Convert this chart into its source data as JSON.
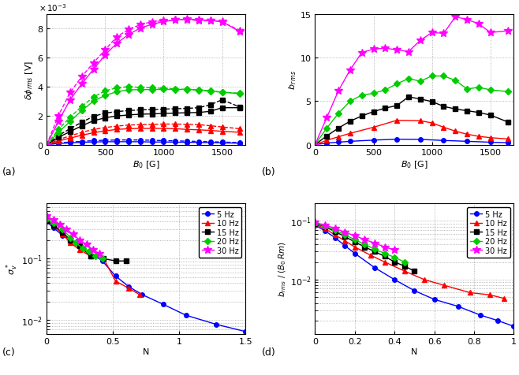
{
  "panel_a": {
    "xlabel": "B_0 [G]",
    "ylabel": "delta_phi_rms [V]",
    "ylim": [
      0,
      9
    ],
    "yticks": [
      0,
      2,
      4,
      6,
      8
    ],
    "xlim": [
      0,
      1700
    ],
    "xticks": [
      0,
      500,
      1000,
      1500
    ],
    "series": [
      {
        "label": "5 Hz",
        "color": "#0000FF",
        "marker": "o",
        "solid_x": [
          0,
          100,
          200,
          300,
          400,
          500,
          600,
          700,
          800,
          900,
          1000,
          1100,
          1200,
          1300,
          1400,
          1500,
          1650
        ],
        "solid_y": [
          0,
          0.08,
          0.12,
          0.16,
          0.18,
          0.2,
          0.2,
          0.2,
          0.2,
          0.18,
          0.18,
          0.17,
          0.16,
          0.15,
          0.14,
          0.12,
          0.1
        ],
        "dashed_x": [
          0,
          100,
          200,
          300,
          400,
          500,
          600,
          700,
          800,
          900,
          1000,
          1100,
          1200,
          1300,
          1400,
          1500,
          1650
        ],
        "dashed_y": [
          0,
          0.12,
          0.18,
          0.22,
          0.28,
          0.3,
          0.32,
          0.32,
          0.32,
          0.3,
          0.28,
          0.26,
          0.24,
          0.22,
          0.2,
          0.18,
          0.14
        ]
      },
      {
        "label": "10 Hz",
        "color": "#FF0000",
        "marker": "^",
        "solid_x": [
          0,
          100,
          200,
          300,
          400,
          500,
          600,
          700,
          800,
          900,
          1000,
          1100,
          1200,
          1300,
          1400,
          1500,
          1650
        ],
        "solid_y": [
          0,
          0.25,
          0.45,
          0.65,
          0.82,
          0.95,
          1.05,
          1.1,
          1.12,
          1.12,
          1.12,
          1.1,
          1.05,
          1.02,
          0.98,
          0.92,
          0.85
        ],
        "dashed_x": [
          0,
          100,
          200,
          300,
          400,
          500,
          600,
          700,
          800,
          900,
          1000,
          1100,
          1200,
          1300,
          1400,
          1500,
          1650
        ],
        "dashed_y": [
          0,
          0.35,
          0.6,
          0.85,
          1.05,
          1.18,
          1.28,
          1.35,
          1.38,
          1.4,
          1.42,
          1.42,
          1.4,
          1.38,
          1.3,
          1.22,
          1.1
        ]
      },
      {
        "label": "15 Hz",
        "color": "#000000",
        "marker": "s",
        "solid_x": [
          0,
          100,
          200,
          300,
          400,
          500,
          600,
          700,
          800,
          900,
          1000,
          1100,
          1200,
          1300,
          1400,
          1500,
          1650
        ],
        "solid_y": [
          0,
          0.5,
          0.9,
          1.3,
          1.65,
          1.85,
          1.98,
          2.05,
          2.1,
          2.12,
          2.15,
          2.18,
          2.2,
          2.22,
          2.3,
          2.55,
          2.55
        ],
        "dashed_x": [
          0,
          100,
          200,
          300,
          400,
          500,
          600,
          700,
          800,
          900,
          1000,
          1100,
          1200,
          1300,
          1400,
          1500,
          1650
        ],
        "dashed_y": [
          0,
          0.62,
          1.1,
          1.55,
          1.95,
          2.18,
          2.28,
          2.35,
          2.4,
          2.42,
          2.45,
          2.48,
          2.5,
          2.55,
          2.75,
          3.1,
          2.6
        ]
      },
      {
        "label": "20 Hz",
        "color": "#00CC00",
        "marker": "D",
        "solid_x": [
          0,
          100,
          200,
          300,
          400,
          500,
          600,
          700,
          800,
          900,
          1000,
          1100,
          1200,
          1300,
          1400,
          1500,
          1650
        ],
        "solid_y": [
          0,
          0.85,
          1.6,
          2.35,
          3.0,
          3.4,
          3.65,
          3.78,
          3.8,
          3.8,
          3.82,
          3.8,
          3.82,
          3.78,
          3.72,
          3.62,
          3.52
        ],
        "dashed_x": [
          0,
          100,
          200,
          300,
          400,
          500,
          600,
          700,
          800,
          900,
          1000,
          1100,
          1200,
          1300,
          1400,
          1500,
          1650
        ],
        "dashed_y": [
          0,
          1.05,
          1.88,
          2.65,
          3.28,
          3.72,
          3.92,
          4.0,
          3.95,
          3.92,
          3.88,
          3.85,
          3.8,
          3.75,
          3.68,
          3.62,
          3.55
        ]
      },
      {
        "label": "30 Hz",
        "color": "#FF00FF",
        "marker": "*",
        "solid_x": [
          0,
          100,
          200,
          300,
          400,
          500,
          600,
          700,
          800,
          900,
          1000,
          1100,
          1200,
          1300,
          1400,
          1500,
          1650
        ],
        "solid_y": [
          0,
          1.6,
          3.1,
          4.2,
          5.2,
          6.2,
          7.0,
          7.6,
          8.05,
          8.3,
          8.5,
          8.6,
          8.68,
          8.62,
          8.58,
          8.5,
          7.8
        ],
        "dashed_x": [
          0,
          100,
          200,
          300,
          400,
          500,
          600,
          700,
          800,
          900,
          1000,
          1100,
          1200,
          1300,
          1400,
          1500,
          1650
        ],
        "dashed_y": [
          0,
          2.0,
          3.6,
          4.7,
          5.65,
          6.55,
          7.45,
          7.95,
          8.28,
          8.48,
          8.55,
          8.6,
          8.65,
          8.55,
          8.55,
          8.48,
          7.88
        ]
      }
    ]
  },
  "panel_b": {
    "xlabel": "B_0 [G]",
    "ylabel": "b_rms",
    "ylim": [
      0,
      15
    ],
    "yticks": [
      0,
      5,
      10,
      15
    ],
    "xlim": [
      0,
      1700
    ],
    "xticks": [
      0,
      500,
      1000,
      1500
    ],
    "series": [
      {
        "label": "5 Hz",
        "color": "#0000FF",
        "marker": "o",
        "x": [
          0,
          100,
          200,
          300,
          500,
          700,
          900,
          1100,
          1300,
          1500,
          1650
        ],
        "y": [
          0,
          0.18,
          0.28,
          0.38,
          0.52,
          0.62,
          0.6,
          0.48,
          0.38,
          0.28,
          0.22
        ]
      },
      {
        "label": "10 Hz",
        "color": "#FF0000",
        "marker": "^",
        "x": [
          0,
          100,
          200,
          300,
          500,
          700,
          900,
          1000,
          1100,
          1200,
          1300,
          1400,
          1500,
          1650
        ],
        "y": [
          0,
          0.5,
          0.9,
          1.3,
          2.0,
          2.8,
          2.75,
          2.5,
          2.0,
          1.55,
          1.2,
          0.95,
          0.8,
          0.65
        ]
      },
      {
        "label": "15 Hz",
        "color": "#000000",
        "marker": "s",
        "x": [
          0,
          100,
          200,
          300,
          400,
          500,
          600,
          700,
          800,
          900,
          1000,
          1100,
          1200,
          1300,
          1400,
          1500,
          1650
        ],
        "y": [
          0,
          1.0,
          1.9,
          2.7,
          3.3,
          3.8,
          4.2,
          4.5,
          5.5,
          5.25,
          4.95,
          4.4,
          4.1,
          3.9,
          3.7,
          3.4,
          2.6
        ]
      },
      {
        "label": "20 Hz",
        "color": "#00CC00",
        "marker": "D",
        "x": [
          0,
          100,
          200,
          300,
          400,
          500,
          600,
          700,
          800,
          900,
          1000,
          1100,
          1200,
          1300,
          1400,
          1500,
          1650
        ],
        "y": [
          0,
          1.9,
          3.6,
          5.0,
          5.7,
          5.9,
          6.3,
          7.0,
          7.6,
          7.3,
          7.9,
          7.9,
          7.4,
          6.4,
          6.6,
          6.3,
          6.1
        ]
      },
      {
        "label": "30 Hz",
        "color": "#FF00FF",
        "marker": "*",
        "x": [
          0,
          100,
          200,
          300,
          400,
          500,
          600,
          700,
          800,
          900,
          1000,
          1100,
          1200,
          1300,
          1400,
          1500,
          1650
        ],
        "y": [
          0,
          3.1,
          6.2,
          8.6,
          10.6,
          11.0,
          11.1,
          10.9,
          10.7,
          12.0,
          12.9,
          12.8,
          14.7,
          14.4,
          13.9,
          12.9,
          13.1
        ]
      }
    ]
  },
  "panel_c": {
    "xlabel": "N",
    "ylabel": "sigma_v*",
    "xlim": [
      0,
      1.5
    ],
    "xticks": [
      0,
      0.5,
      1.0,
      1.5
    ],
    "series": [
      {
        "label": "5 Hz",
        "color": "#0000FF",
        "marker": "o",
        "x": [
          0,
          0.05,
          0.12,
          0.22,
          0.32,
          0.42,
          0.52,
          0.62,
          0.72,
          0.88,
          1.05,
          1.28,
          1.5
        ],
        "y": [
          0.4,
          0.32,
          0.24,
          0.18,
          0.13,
          0.092,
          0.052,
          0.035,
          0.026,
          0.018,
          0.012,
          0.0085,
          0.0065
        ]
      },
      {
        "label": "10 Hz",
        "color": "#FF0000",
        "marker": "^",
        "x": [
          0,
          0.05,
          0.12,
          0.18,
          0.25,
          0.33,
          0.43,
          0.52,
          0.62,
          0.7
        ],
        "y": [
          0.42,
          0.35,
          0.25,
          0.18,
          0.14,
          0.11,
          0.1,
          0.043,
          0.033,
          0.026
        ]
      },
      {
        "label": "15 Hz",
        "color": "#000000",
        "marker": "s",
        "x": [
          0,
          0.05,
          0.12,
          0.18,
          0.25,
          0.33,
          0.43,
          0.52,
          0.6
        ],
        "y": [
          0.42,
          0.35,
          0.27,
          0.2,
          0.16,
          0.11,
          0.1,
          0.092,
          0.092
        ]
      },
      {
        "label": "20 Hz",
        "color": "#00CC00",
        "marker": "D",
        "x": [
          0,
          0.05,
          0.12,
          0.18,
          0.22,
          0.27,
          0.32,
          0.37,
          0.42
        ],
        "y": [
          0.45,
          0.38,
          0.3,
          0.22,
          0.18,
          0.15,
          0.13,
          0.11,
          0.1
        ]
      },
      {
        "label": "30 Hz",
        "color": "#FF00FF",
        "marker": "*",
        "x": [
          0,
          0.05,
          0.1,
          0.15,
          0.2,
          0.25,
          0.3,
          0.35,
          0.4
        ],
        "y": [
          0.5,
          0.43,
          0.36,
          0.3,
          0.25,
          0.2,
          0.17,
          0.14,
          0.12
        ]
      }
    ]
  },
  "panel_d": {
    "xlabel": "N",
    "ylabel": "b_rms / (B0 Rm)",
    "xlim": [
      0,
      1.0
    ],
    "xticks": [
      0,
      0.2,
      0.4,
      0.6,
      0.8,
      1.0
    ],
    "series": [
      {
        "label": "5 Hz",
        "color": "#0000FF",
        "marker": "o",
        "x": [
          0,
          0.05,
          0.1,
          0.15,
          0.2,
          0.3,
          0.4,
          0.5,
          0.6,
          0.72,
          0.83,
          0.92,
          1.0
        ],
        "y": [
          0.085,
          0.068,
          0.052,
          0.038,
          0.028,
          0.016,
          0.01,
          0.0065,
          0.0046,
          0.0035,
          0.0025,
          0.002,
          0.0016
        ]
      },
      {
        "label": "10 Hz",
        "color": "#FF0000",
        "marker": "^",
        "x": [
          0,
          0.05,
          0.1,
          0.15,
          0.2,
          0.28,
          0.35,
          0.45,
          0.55,
          0.65,
          0.78,
          0.88,
          0.95
        ],
        "y": [
          0.088,
          0.074,
          0.058,
          0.046,
          0.036,
          0.026,
          0.02,
          0.014,
          0.01,
          0.008,
          0.006,
          0.0055,
          0.0048
        ]
      },
      {
        "label": "15 Hz",
        "color": "#000000",
        "marker": "s",
        "x": [
          0,
          0.05,
          0.1,
          0.15,
          0.2,
          0.25,
          0.3,
          0.35,
          0.4,
          0.45,
          0.5
        ],
        "y": [
          0.09,
          0.08,
          0.066,
          0.054,
          0.044,
          0.036,
          0.03,
          0.025,
          0.02,
          0.017,
          0.014
        ]
      },
      {
        "label": "20 Hz",
        "color": "#00CC00",
        "marker": "D",
        "x": [
          0,
          0.05,
          0.1,
          0.15,
          0.2,
          0.25,
          0.3,
          0.35,
          0.4,
          0.45
        ],
        "y": [
          0.092,
          0.082,
          0.07,
          0.058,
          0.048,
          0.04,
          0.033,
          0.028,
          0.024,
          0.02
        ]
      },
      {
        "label": "30 Hz",
        "color": "#FF00FF",
        "marker": "*",
        "x": [
          0,
          0.05,
          0.1,
          0.15,
          0.2,
          0.25,
          0.3,
          0.35,
          0.4
        ],
        "y": [
          0.094,
          0.085,
          0.075,
          0.064,
          0.056,
          0.048,
          0.042,
          0.036,
          0.032
        ]
      }
    ]
  }
}
